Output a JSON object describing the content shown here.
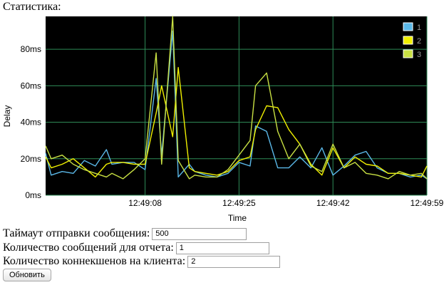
{
  "section_title": "Статистика:",
  "form": {
    "timeout_label": "Таймаут отправки сообщения:",
    "timeout_value": "500",
    "count_label": "Количество сообщений для отчета:",
    "count_value": "1",
    "connections_label": "Количество коннекшенов на клиента:",
    "connections_value": "2",
    "refresh_label": "Обновить"
  },
  "colors": {
    "plot_bg": "#000000",
    "grid": "#2e8b57",
    "series": [
      "#5bb8e8",
      "#f0f000",
      "#c8e043"
    ]
  },
  "chart_data": {
    "type": "line",
    "xlabel": "Time",
    "ylabel": "Delay",
    "x_ticks": [
      "12:49:08",
      "12:49:25",
      "12:49:42",
      "12:49:59"
    ],
    "y_ticks": [
      "0ms",
      "20ms",
      "40ms",
      "60ms",
      "80ms"
    ],
    "ylim": [
      0,
      98
    ],
    "grid": true,
    "legend": "top-right",
    "x": [
      "12:48:50",
      "12:48:51",
      "12:48:53",
      "12:48:55",
      "12:48:57",
      "12:48:59",
      "12:49:01",
      "12:49:02",
      "12:49:04",
      "12:49:06",
      "12:49:08",
      "12:49:10",
      "12:49:11",
      "12:49:13",
      "12:49:14",
      "12:49:16",
      "12:49:17",
      "12:49:19",
      "12:49:21",
      "12:49:23",
      "12:49:25",
      "12:49:27",
      "12:49:28",
      "12:49:30",
      "12:49:32",
      "12:49:34",
      "12:49:36",
      "12:49:38",
      "12:49:40",
      "12:49:42",
      "12:49:44",
      "12:49:46",
      "12:49:48",
      "12:49:50",
      "12:49:52",
      "12:49:54",
      "12:49:56",
      "12:49:58",
      "12:49:59"
    ],
    "series": [
      {
        "name": "1",
        "values": [
          23,
          11,
          13,
          12,
          19,
          16,
          25,
          17,
          18,
          18,
          14,
          64,
          22,
          90,
          10,
          17,
          13,
          11,
          10,
          12,
          18,
          16,
          38,
          35,
          15,
          15,
          21,
          15,
          26,
          11,
          16,
          22,
          24,
          15,
          12,
          12,
          10,
          11,
          9
        ]
      },
      {
        "name": "2",
        "values": [
          21,
          15,
          17,
          20,
          15,
          10,
          17,
          18,
          18,
          17,
          17,
          45,
          60,
          32,
          70,
          15,
          13,
          12,
          11,
          13,
          19,
          21,
          36,
          49,
          48,
          36,
          28,
          17,
          11,
          26,
          15,
          21,
          17,
          16,
          12,
          12,
          11,
          10,
          16
        ]
      },
      {
        "name": "3",
        "values": [
          27,
          20,
          22,
          17,
          14,
          12,
          10,
          12,
          9,
          14,
          20,
          78,
          17,
          98,
          19,
          9,
          11,
          10,
          10,
          14,
          22,
          30,
          60,
          67,
          35,
          20,
          28,
          16,
          13,
          28,
          15,
          18,
          12,
          11,
          9,
          13,
          11,
          12,
          9
        ]
      }
    ]
  }
}
